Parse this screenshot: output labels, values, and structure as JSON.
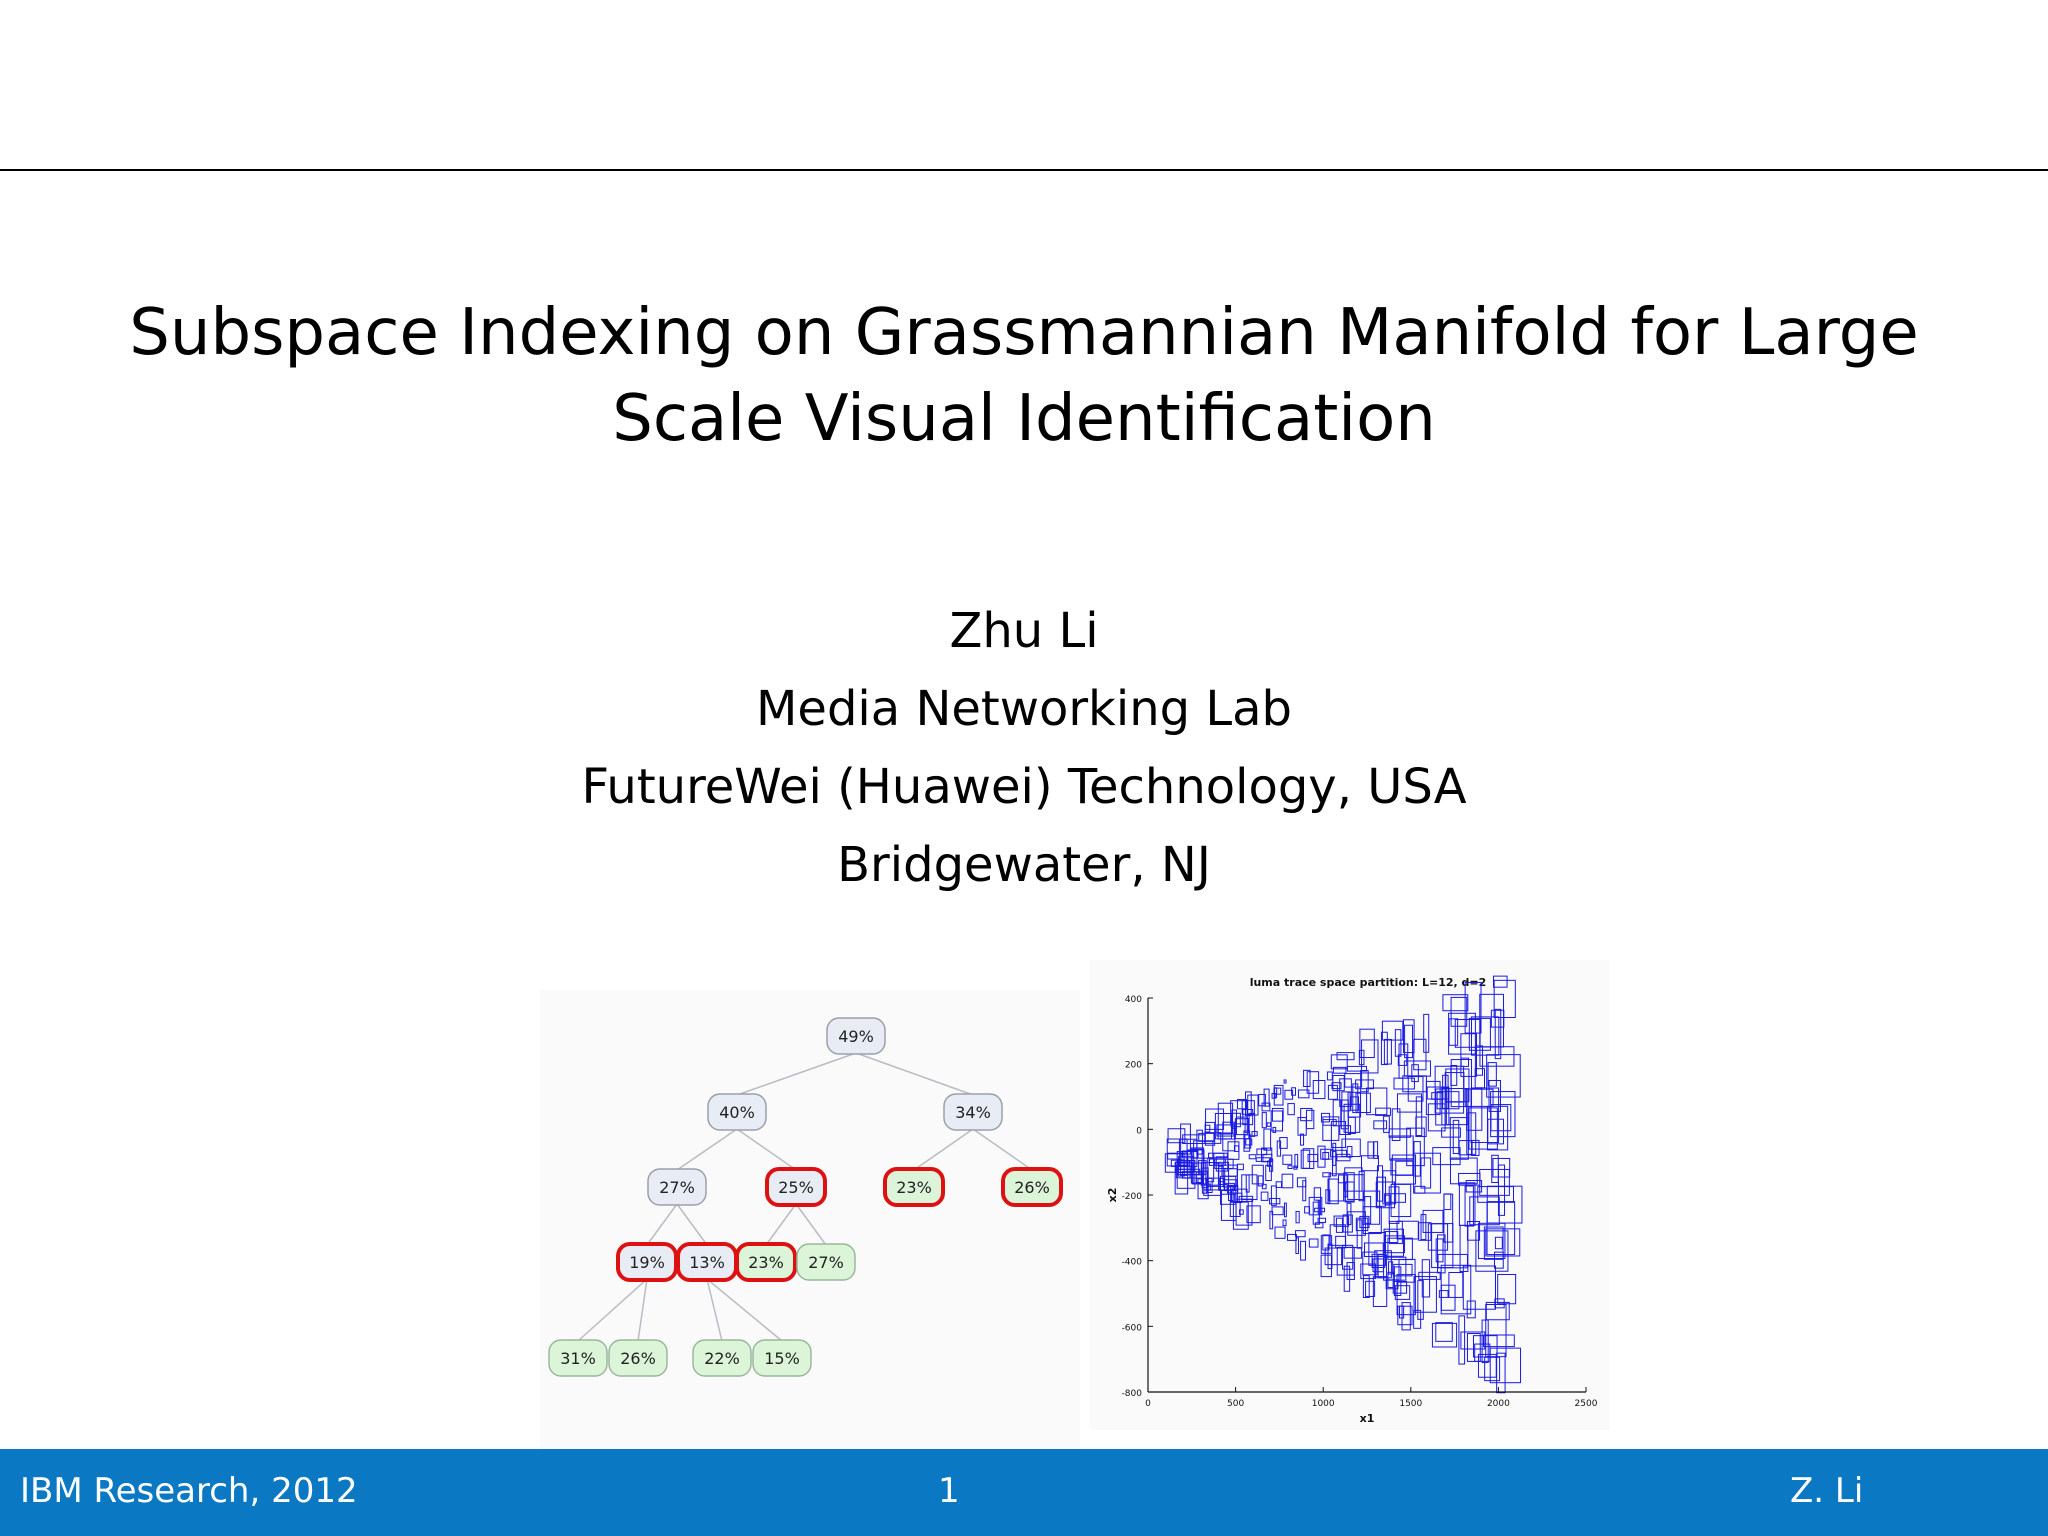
{
  "slide": {
    "title_line1": "Subspace Indexing on Grassmannian Manifold for Large",
    "title_line2": "Scale Visual Identification",
    "author": "Zhu Li",
    "lab": "Media Networking Lab",
    "company": "FutureWei (Huawei) Technology, USA",
    "location": "Bridgewater, NJ"
  },
  "tree_figure": {
    "nodes": [
      {
        "label": "49%",
        "level": 0,
        "style": "gray"
      },
      {
        "label": "40%",
        "level": 1,
        "style": "gray"
      },
      {
        "label": "34%",
        "level": 1,
        "style": "gray"
      },
      {
        "label": "27%",
        "level": 2,
        "style": "gray"
      },
      {
        "label": "25%",
        "level": 2,
        "style": "red"
      },
      {
        "label": "23%",
        "level": 2,
        "style": "red-green"
      },
      {
        "label": "26%",
        "level": 2,
        "style": "red-green"
      },
      {
        "label": "19%",
        "level": 3,
        "style": "red"
      },
      {
        "label": "13%",
        "level": 3,
        "style": "red"
      },
      {
        "label": "23%",
        "level": 3,
        "style": "red-green"
      },
      {
        "label": "27%",
        "level": 3,
        "style": "green"
      },
      {
        "label": "31%",
        "level": 4,
        "style": "green"
      },
      {
        "label": "26%",
        "level": 4,
        "style": "green"
      },
      {
        "label": "22%",
        "level": 4,
        "style": "green"
      },
      {
        "label": "15%",
        "level": 4,
        "style": "green"
      }
    ],
    "colors": {
      "gray_fill": "#e8ecf4",
      "green_fill": "#dcf5d8",
      "red_stroke": "#dd1111",
      "edge": "#b8bcc4"
    }
  },
  "plot_figure": {
    "title": "luma trace space partition: L=12, d=2",
    "xlabel": "x1",
    "ylabel": "x2",
    "x_ticks": [
      "0",
      "500",
      "1000",
      "1500",
      "2000",
      "2500"
    ],
    "y_ticks": [
      "400",
      "200",
      "0",
      "-200",
      "-400",
      "-600",
      "-800"
    ],
    "box_color": "#1a1ae0"
  },
  "footer": {
    "left": "IBM Research, 2012",
    "page": "1",
    "right": "Z. Li",
    "background": "#0a78c2"
  }
}
